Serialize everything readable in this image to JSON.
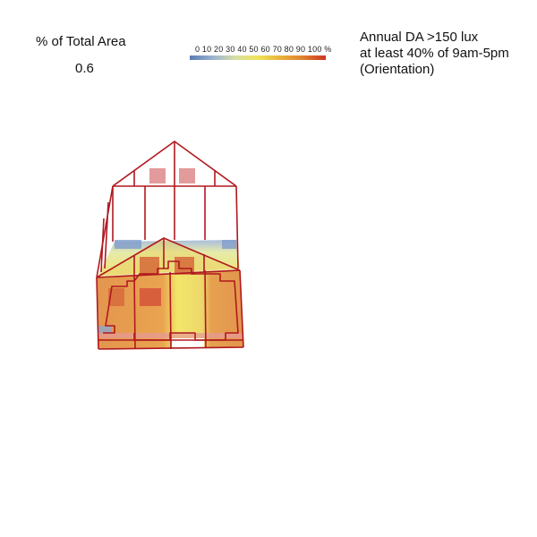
{
  "area": {
    "label": "% of Total Area",
    "value": "0.6"
  },
  "color_scale": {
    "ticks": "0 10 20 30 40 50 60 70 80 90 100 %",
    "colors": [
      "#5b7bb6",
      "#9ab3cf",
      "#d6dfa8",
      "#eee35a",
      "#e9b13c",
      "#e08230",
      "#cc3622"
    ]
  },
  "legend": {
    "line1": "Annual DA >150 lux",
    "line2": "at least 40% of 9am-5pm",
    "line3": "(Orientation)"
  },
  "model": {
    "wireframe_color": "#b0191f",
    "window_color": "#e39a9a"
  }
}
